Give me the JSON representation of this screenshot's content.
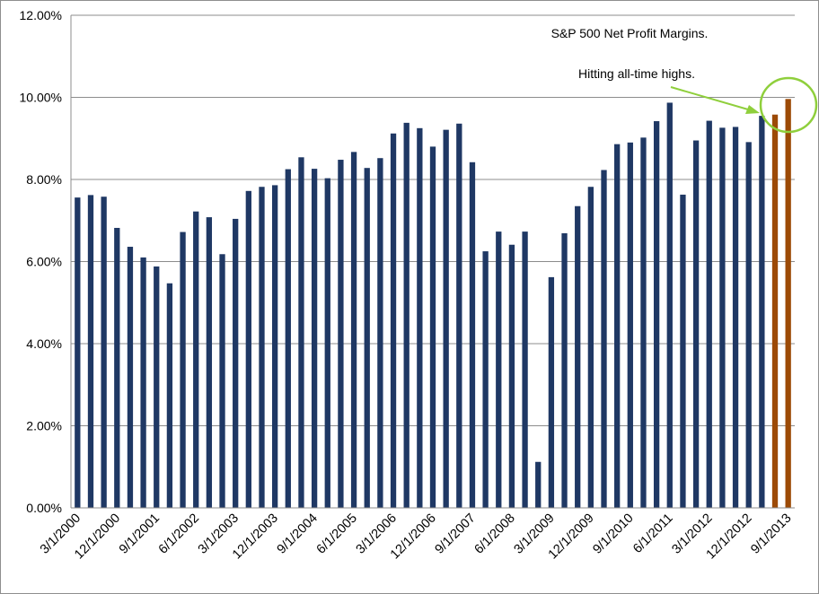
{
  "chart_data": {
    "type": "bar",
    "title": "S&P 500 Net Profit Margins.",
    "annotation": "Hitting all-time highs.",
    "xlabel": "",
    "ylabel": "",
    "ylim": [
      0,
      12
    ],
    "yticks": [
      "0.00%",
      "2.00%",
      "4.00%",
      "6.00%",
      "8.00%",
      "10.00%",
      "12.00%"
    ],
    "ytick_values": [
      0,
      2,
      4,
      6,
      8,
      10,
      12
    ],
    "grid": true,
    "legend": "none",
    "colors": {
      "actual": "#1f3864",
      "estimate": "#9c4a06",
      "annotation": "#8fcf3c",
      "grid": "#8c8c8c"
    },
    "categories": [
      "3/1/2000",
      "6/1/2000",
      "9/1/2000",
      "12/1/2000",
      "3/1/2001",
      "6/1/2001",
      "9/1/2001",
      "12/1/2001",
      "3/1/2002",
      "6/1/2002",
      "9/1/2002",
      "12/1/2002",
      "3/1/2003",
      "6/1/2003",
      "9/1/2003",
      "12/1/2003",
      "3/1/2004",
      "6/1/2004",
      "9/1/2004",
      "12/1/2004",
      "3/1/2005",
      "6/1/2005",
      "9/1/2005",
      "12/1/2005",
      "3/1/2006",
      "6/1/2006",
      "9/1/2006",
      "12/1/2006",
      "3/1/2007",
      "6/1/2007",
      "9/1/2007",
      "12/1/2007",
      "3/1/2008",
      "6/1/2008",
      "9/1/2008",
      "12/1/2008",
      "3/1/2009",
      "6/1/2009",
      "9/1/2009",
      "12/1/2009",
      "3/1/2010",
      "6/1/2010",
      "9/1/2010",
      "12/1/2010",
      "3/1/2011",
      "6/1/2011",
      "9/1/2011",
      "12/1/2011",
      "3/1/2012",
      "6/1/2012",
      "9/1/2012",
      "12/1/2012",
      "3/1/2013",
      "6/1/2013",
      "9/1/2013"
    ],
    "shown_xtick_labels": [
      "3/1/2000",
      "12/1/2000",
      "9/1/2001",
      "6/1/2002",
      "3/1/2003",
      "12/1/2003",
      "9/1/2004",
      "6/1/2005",
      "3/1/2006",
      "12/1/2006",
      "9/1/2007",
      "6/1/2008",
      "3/1/2009",
      "12/1/2009",
      "9/1/2010",
      "6/1/2011",
      "3/1/2012",
      "12/1/2012",
      "9/1/2013"
    ],
    "values": [
      7.56,
      7.62,
      7.58,
      6.82,
      6.36,
      6.1,
      5.88,
      5.47,
      6.72,
      7.22,
      7.08,
      6.18,
      7.04,
      7.72,
      7.82,
      7.86,
      8.25,
      8.54,
      8.26,
      8.03,
      8.48,
      8.67,
      8.28,
      8.52,
      9.12,
      9.38,
      9.25,
      8.8,
      9.21,
      9.36,
      8.42,
      6.25,
      6.73,
      6.41,
      6.73,
      1.12,
      5.62,
      6.69,
      7.35,
      7.82,
      8.23,
      8.86,
      8.9,
      9.02,
      9.42,
      9.87,
      7.63,
      8.95,
      9.43,
      9.26,
      9.28,
      8.91,
      9.55,
      9.58,
      9.96
    ],
    "estimate_from_index": 53
  }
}
